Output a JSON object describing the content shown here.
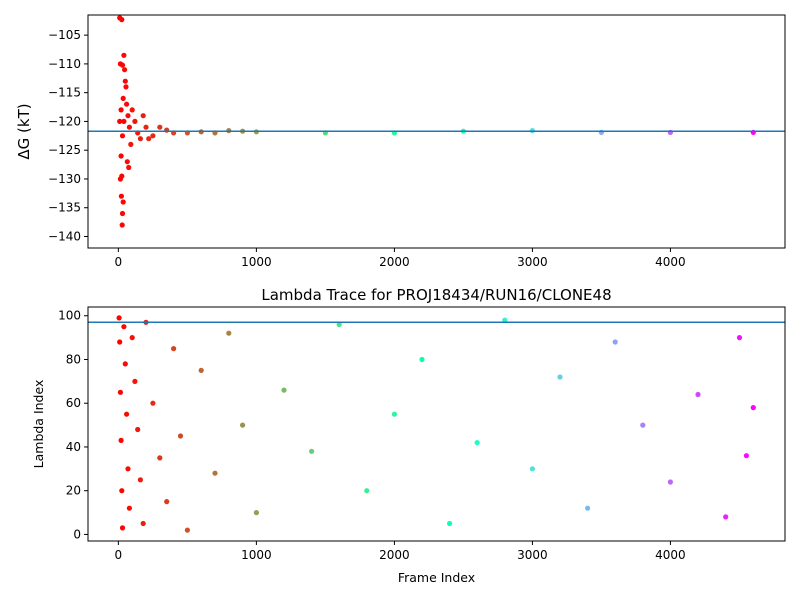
{
  "chart_data": [
    {
      "type": "scatter",
      "title": "",
      "xlabel": "",
      "ylabel": "ΔG (kT)",
      "xlim": [
        -220,
        4830
      ],
      "ylim": [
        -142,
        -101.5
      ],
      "xticks": [
        0,
        1000,
        2000,
        3000,
        4000
      ],
      "yticks": [
        -140,
        -135,
        -130,
        -125,
        -120,
        -115,
        -110,
        -105
      ],
      "reference_line": -121.7,
      "reference_line_color": "#1f77b4",
      "colormap": "rainbow",
      "series": [
        {
          "points": [
            [
              10,
              -102
            ],
            [
              25,
              -102.3
            ],
            [
              15,
              -110
            ],
            [
              30,
              -110.2
            ],
            [
              40,
              -108.5
            ],
            [
              45,
              -111
            ],
            [
              20,
              -118
            ],
            [
              35,
              -116
            ],
            [
              50,
              -113
            ],
            [
              40,
              -120
            ],
            [
              10,
              -120
            ],
            [
              30,
              -122.5
            ],
            [
              20,
              -126
            ],
            [
              25,
              -129.5
            ],
            [
              15,
              -130
            ],
            [
              22,
              -133
            ],
            [
              35,
              -134
            ],
            [
              30,
              -136
            ],
            [
              28,
              -138
            ],
            [
              55,
              -114
            ],
            [
              60,
              -117
            ],
            [
              70,
              -119
            ],
            [
              80,
              -121
            ],
            [
              90,
              -124
            ],
            [
              65,
              -127
            ],
            [
              75,
              -128
            ],
            [
              100,
              -118
            ],
            [
              120,
              -120
            ],
            [
              140,
              -122
            ],
            [
              160,
              -123
            ],
            [
              180,
              -119
            ],
            [
              200,
              -121
            ],
            [
              220,
              -123
            ],
            [
              250,
              -122.5
            ],
            [
              300,
              -121
            ],
            [
              350,
              -121.5
            ],
            [
              400,
              -122
            ],
            [
              500,
              -122
            ],
            [
              600,
              -121.8
            ],
            [
              700,
              -122
            ],
            [
              800,
              -121.6
            ],
            [
              900,
              -121.7
            ],
            [
              1000,
              -121.8
            ],
            [
              1500,
              -122
            ],
            [
              2000,
              -122
            ],
            [
              2500,
              -121.7
            ],
            [
              3000,
              -121.6
            ],
            [
              3500,
              -121.9
            ],
            [
              4000,
              -121.9
            ],
            [
              4600,
              -121.9
            ]
          ]
        }
      ]
    },
    {
      "type": "scatter",
      "title": "Lambda Trace for PROJ18434/RUN16/CLONE48",
      "xlabel": "Frame Index",
      "ylabel": "Lambda Index",
      "xlim": [
        -220,
        4830
      ],
      "ylim": [
        -3,
        104
      ],
      "xticks": [
        0,
        1000,
        2000,
        3000,
        4000
      ],
      "yticks": [
        0,
        20,
        40,
        60,
        80,
        100
      ],
      "reference_line": 97,
      "reference_line_color": "#1f77b4",
      "colormap": "rainbow",
      "series": [
        {
          "points": [
            [
              5,
              99
            ],
            [
              10,
              88
            ],
            [
              15,
              65
            ],
            [
              20,
              43
            ],
            [
              25,
              20
            ],
            [
              30,
              3
            ],
            [
              40,
              95
            ],
            [
              50,
              78
            ],
            [
              60,
              55
            ],
            [
              70,
              30
            ],
            [
              80,
              12
            ],
            [
              100,
              90
            ],
            [
              120,
              70
            ],
            [
              140,
              48
            ],
            [
              160,
              25
            ],
            [
              180,
              5
            ],
            [
              200,
              97
            ],
            [
              250,
              60
            ],
            [
              300,
              35
            ],
            [
              350,
              15
            ],
            [
              400,
              85
            ],
            [
              450,
              45
            ],
            [
              500,
              2
            ],
            [
              600,
              75
            ],
            [
              700,
              28
            ],
            [
              800,
              92
            ],
            [
              900,
              50
            ],
            [
              1000,
              10
            ],
            [
              1200,
              66
            ],
            [
              1400,
              38
            ],
            [
              1600,
              96
            ],
            [
              1800,
              20
            ],
            [
              2000,
              55
            ],
            [
              2200,
              80
            ],
            [
              2400,
              5
            ],
            [
              2600,
              42
            ],
            [
              2800,
              98
            ],
            [
              3000,
              30
            ],
            [
              3200,
              72
            ],
            [
              3400,
              12
            ],
            [
              3600,
              88
            ],
            [
              3800,
              50
            ],
            [
              4000,
              24
            ],
            [
              4200,
              64
            ],
            [
              4400,
              8
            ],
            [
              4500,
              90
            ],
            [
              4550,
              36
            ],
            [
              4600,
              58
            ]
          ]
        }
      ]
    }
  ]
}
